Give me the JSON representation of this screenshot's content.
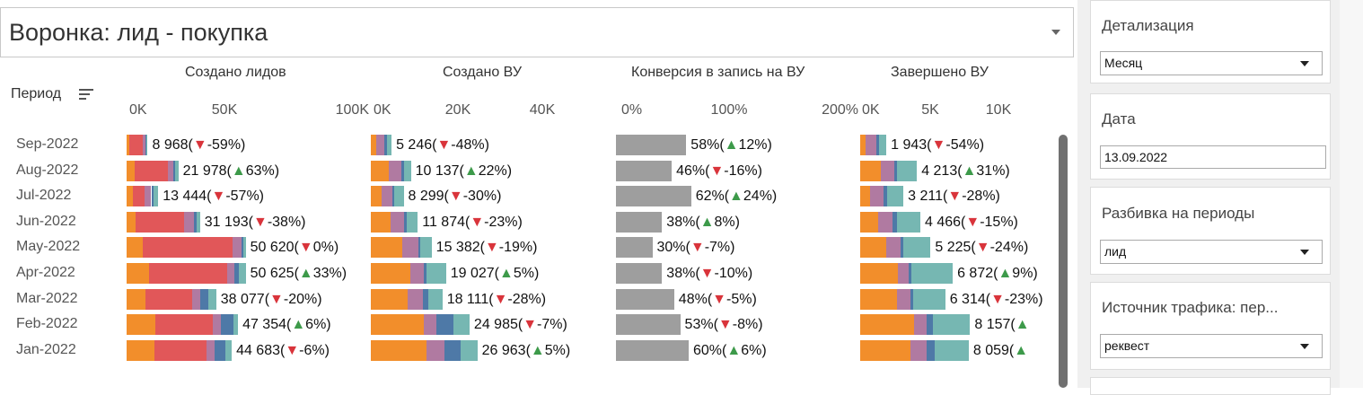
{
  "title": "Воронка: лид - покупка",
  "period_header": "Период",
  "icons": {
    "sort": "sort-lines-icon",
    "dropdown": "chevron-down-icon"
  },
  "colors": {
    "orange": "#f28e2b",
    "red": "#e15759",
    "purple": "#b07aa1",
    "blue": "#4e79a7",
    "teal": "#76b7b2",
    "gray": "#9e9e9e",
    "up": "#3d9a4a",
    "down": "#d9343b"
  },
  "periods": [
    "Sep-2022",
    "Aug-2022",
    "Jul-2022",
    "Jun-2022",
    "May-2022",
    "Apr-2022",
    "Mar-2022",
    "Feb-2022",
    "Jan-2022"
  ],
  "chart_data": [
    {
      "type": "bar",
      "stacked": true,
      "orientation": "horizontal",
      "title": "Создано лидов",
      "xlim": [
        0,
        100000
      ],
      "tick_labels": [
        "0K",
        "50K",
        "100K"
      ],
      "categories": [
        "Sep-2022",
        "Aug-2022",
        "Jul-2022",
        "Jun-2022",
        "May-2022",
        "Apr-2022",
        "Mar-2022",
        "Feb-2022",
        "Jan-2022"
      ],
      "series": [
        {
          "name": "orange",
          "values": [
            1000,
            3500,
            2600,
            4000,
            7000,
            9600,
            8000,
            12300,
            12000
          ]
        },
        {
          "name": "red",
          "values": [
            5800,
            14000,
            5200,
            20500,
            38000,
            33000,
            20000,
            24500,
            22000
          ]
        },
        {
          "name": "purple",
          "values": [
            1200,
            2500,
            2700,
            4000,
            4000,
            3200,
            3400,
            3400,
            3500
          ]
        },
        {
          "name": "blue",
          "values": [
            400,
            800,
            800,
            1200,
            600,
            2000,
            3500,
            5200,
            4500
          ]
        },
        {
          "name": "teal",
          "values": [
            568,
            1178,
            2144,
            1493,
            1020,
            2825,
            3177,
            1954,
            2683
          ]
        }
      ],
      "labels": [
        {
          "value": "8 968",
          "change": "-59%",
          "dir": "down"
        },
        {
          "value": "21 978",
          "change": "63%",
          "dir": "up"
        },
        {
          "value": "13 444",
          "change": "-57%",
          "dir": "down"
        },
        {
          "value": "31 193",
          "change": "-38%",
          "dir": "down"
        },
        {
          "value": "50 620",
          "change": "0%",
          "dir": "down"
        },
        {
          "value": "50 625",
          "change": "33%",
          "dir": "up"
        },
        {
          "value": "38 077",
          "change": "-20%",
          "dir": "down"
        },
        {
          "value": "47 354",
          "change": "6%",
          "dir": "up"
        },
        {
          "value": "44 683",
          "change": "-6%",
          "dir": "down"
        }
      ]
    },
    {
      "type": "bar",
      "stacked": true,
      "orientation": "horizontal",
      "title": "Создано ВУ",
      "xlim": [
        0,
        50000
      ],
      "tick_labels": [
        "0K",
        "20K",
        "40K"
      ],
      "categories": [
        "Sep-2022",
        "Aug-2022",
        "Jul-2022",
        "Jun-2022",
        "May-2022",
        "Apr-2022",
        "Mar-2022",
        "Feb-2022",
        "Jan-2022"
      ],
      "series": [
        {
          "name": "orange",
          "values": [
            1300,
            4500,
            2700,
            5000,
            8000,
            10000,
            9300,
            13300,
            14000
          ]
        },
        {
          "name": "purple",
          "values": [
            2200,
            3200,
            2700,
            3500,
            4000,
            3500,
            3800,
            3200,
            4700
          ]
        },
        {
          "name": "blue",
          "values": [
            500,
            600,
            500,
            500,
            400,
            500,
            1500,
            4500,
            4000
          ]
        },
        {
          "name": "teal",
          "values": [
            1246,
            1837,
            2399,
            2874,
            2982,
            5027,
            3511,
            3985,
            4263
          ]
        }
      ],
      "labels": [
        {
          "value": "5 246",
          "change": "-48%",
          "dir": "down"
        },
        {
          "value": "10 137",
          "change": "22%",
          "dir": "up"
        },
        {
          "value": "8 299",
          "change": "-30%",
          "dir": "down"
        },
        {
          "value": "11 874",
          "change": "-23%",
          "dir": "down"
        },
        {
          "value": "15 382",
          "change": "-19%",
          "dir": "down"
        },
        {
          "value": "19 027",
          "change": "5%",
          "dir": "up"
        },
        {
          "value": "18 111",
          "change": "-28%",
          "dir": "down"
        },
        {
          "value": "24 985",
          "change": "-7%",
          "dir": "down"
        },
        {
          "value": "26 963",
          "change": "5%",
          "dir": "up"
        }
      ]
    },
    {
      "type": "bar",
      "orientation": "horizontal",
      "title": "Конверсия в запись на ВУ",
      "xlim": [
        0,
        200
      ],
      "tick_labels": [
        "0%",
        "100%",
        "200%"
      ],
      "categories": [
        "Sep-2022",
        "Aug-2022",
        "Jul-2022",
        "Jun-2022",
        "May-2022",
        "Apr-2022",
        "Mar-2022",
        "Feb-2022",
        "Jan-2022"
      ],
      "values": [
        58,
        46,
        62,
        38,
        30,
        38,
        48,
        53,
        60
      ],
      "labels": [
        {
          "value": "58%",
          "change": "12%",
          "dir": "up"
        },
        {
          "value": "46%",
          "change": "-16%",
          "dir": "down"
        },
        {
          "value": "62%",
          "change": "24%",
          "dir": "up"
        },
        {
          "value": "38%",
          "change": "8%",
          "dir": "up"
        },
        {
          "value": "30%",
          "change": "-7%",
          "dir": "down"
        },
        {
          "value": "38%",
          "change": "-10%",
          "dir": "down"
        },
        {
          "value": "48%",
          "change": "-5%",
          "dir": "down"
        },
        {
          "value": "53%",
          "change": "-8%",
          "dir": "down"
        },
        {
          "value": "60%",
          "change": "6%",
          "dir": "up"
        }
      ]
    },
    {
      "type": "bar",
      "stacked": true,
      "orientation": "horizontal",
      "title": "Завершено ВУ",
      "xlim": [
        0,
        13000
      ],
      "tick_labels": [
        "0K",
        "5K",
        "10K"
      ],
      "categories": [
        "Sep-2022",
        "Aug-2022",
        "Jul-2022",
        "Jun-2022",
        "May-2022",
        "Apr-2022",
        "Mar-2022",
        "Feb-2022",
        "Jan-2022"
      ],
      "series": [
        {
          "name": "orange",
          "values": [
            400,
            1500,
            700,
            1300,
            1900,
            2800,
            2700,
            4000,
            3700
          ]
        },
        {
          "name": "purple",
          "values": [
            800,
            1000,
            1000,
            1100,
            1100,
            800,
            1000,
            900,
            1200
          ]
        },
        {
          "name": "blue",
          "values": [
            200,
            200,
            300,
            300,
            200,
            200,
            200,
            500,
            600
          ]
        },
        {
          "name": "teal",
          "values": [
            543,
            1513,
            1211,
            1766,
            2025,
            3072,
            2414,
            2757,
            2559
          ]
        }
      ],
      "labels": [
        {
          "value": "1 943",
          "change": "-54%",
          "dir": "down"
        },
        {
          "value": "4 213",
          "change": "31%",
          "dir": "up"
        },
        {
          "value": "3 211",
          "change": "-28%",
          "dir": "down"
        },
        {
          "value": "4 466",
          "change": "-15%",
          "dir": "down"
        },
        {
          "value": "5 225",
          "change": "-24%",
          "dir": "down"
        },
        {
          "value": "6 872",
          "change": "9%",
          "dir": "up"
        },
        {
          "value": "6 314",
          "change": "-23%",
          "dir": "down"
        },
        {
          "value": "8 157",
          "change": "",
          "dir": "up"
        },
        {
          "value": "8 059",
          "change": "",
          "dir": "up"
        }
      ]
    }
  ],
  "filters": {
    "detail": {
      "title": "Детализация",
      "value": "Месяц"
    },
    "date": {
      "title": "Дата",
      "value": "13.09.2022"
    },
    "split": {
      "title": "Разбивка на периоды",
      "value": "лид"
    },
    "source": {
      "title": "Источник трафика: пер...",
      "value": "реквест"
    }
  }
}
